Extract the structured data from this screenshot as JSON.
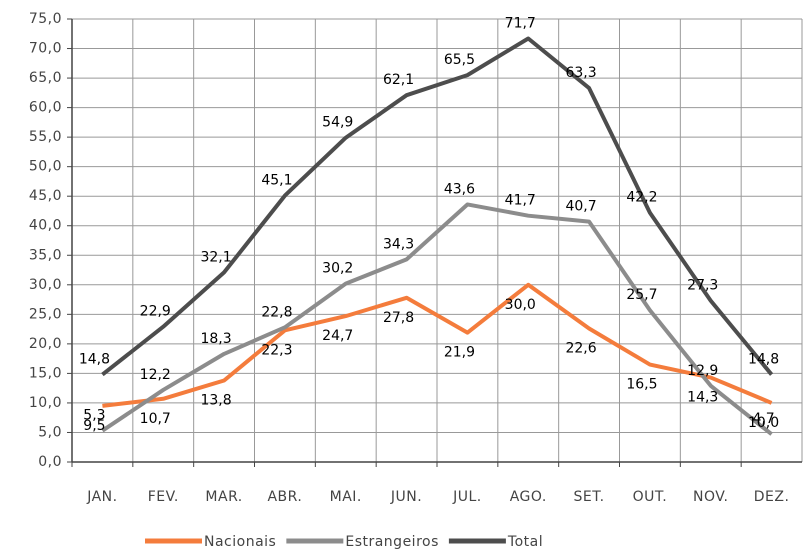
{
  "chart_data": {
    "type": "line",
    "categories": [
      "JAN.",
      "FEV.",
      "MAR.",
      "ABR.",
      "MAI.",
      "JUN.",
      "JUL.",
      "AGO.",
      "SET.",
      "OUT.",
      "NOV.",
      "DEZ."
    ],
    "series": [
      {
        "name": "Nacionais",
        "color": "#f47c3c",
        "values": [
          9.5,
          10.7,
          13.8,
          22.3,
          24.7,
          27.8,
          21.9,
          30.0,
          22.6,
          16.5,
          14.3,
          10.0
        ],
        "value_labels": [
          "9,5",
          "10,7",
          "13,8",
          "22,3",
          "24,7",
          "27,8",
          "21,9",
          "30,0",
          "22,6",
          "16,5",
          "14,3",
          "10,0"
        ]
      },
      {
        "name": "Estrangeiros",
        "color": "#8c8c8c",
        "values": [
          5.3,
          12.2,
          18.3,
          22.8,
          30.2,
          34.3,
          43.6,
          41.7,
          40.7,
          25.7,
          12.9,
          4.7
        ],
        "value_labels": [
          "5,3",
          "12,2",
          "18,3",
          "22,8",
          "30,2",
          "34,3",
          "43,6",
          "41,7",
          "40,7",
          "25,7",
          "12,9",
          "4,7"
        ]
      },
      {
        "name": "Total",
        "color": "#4d4d4d",
        "values": [
          14.8,
          22.9,
          32.1,
          45.1,
          54.9,
          62.1,
          65.5,
          71.7,
          63.3,
          42.2,
          27.3,
          14.8
        ],
        "value_labels": [
          "14,8",
          "22,9",
          "32,1",
          "45,1",
          "54,9",
          "62,1",
          "65,5",
          "71,7",
          "63,3",
          "42,2",
          "27,3",
          "14,8"
        ]
      }
    ],
    "ylim": [
      0,
      75
    ],
    "yticks": [
      {
        "value": 0,
        "label": "0,0"
      },
      {
        "value": 5,
        "label": "5,0"
      },
      {
        "value": 10,
        "label": "10,0"
      },
      {
        "value": 15,
        "label": "15,0"
      },
      {
        "value": 20,
        "label": "20,0"
      },
      {
        "value": 25,
        "label": "25,0"
      },
      {
        "value": 30,
        "label": "30,0"
      },
      {
        "value": 35,
        "label": "35,0"
      },
      {
        "value": 40,
        "label": "40,0"
      },
      {
        "value": 45,
        "label": "45,0"
      },
      {
        "value": 50,
        "label": "50,0"
      },
      {
        "value": 55,
        "label": "55,0"
      },
      {
        "value": 60,
        "label": "60,0"
      },
      {
        "value": 65,
        "label": "65,0"
      },
      {
        "value": 70,
        "label": "70,0"
      },
      {
        "value": 75,
        "label": "75,0"
      }
    ],
    "grid": true,
    "legend": "bottom"
  }
}
